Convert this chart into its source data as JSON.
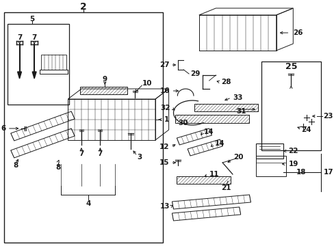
{
  "bg_color": "#ffffff",
  "line_color": "#1a1a1a",
  "fig_width": 4.89,
  "fig_height": 3.6,
  "dpi": 100,
  "font_size": 7.5,
  "font_size_med": 9,
  "font_size_large": 10
}
